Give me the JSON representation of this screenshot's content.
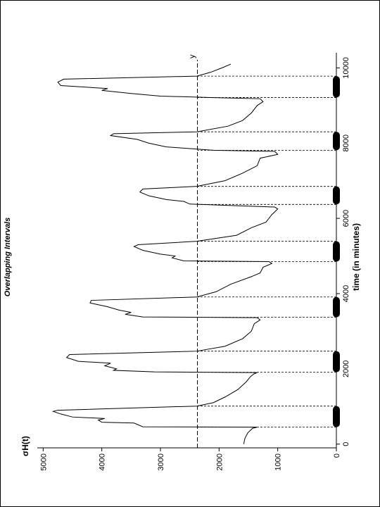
{
  "chart_data": {
    "type": "line",
    "title": "Overlapping Intervals",
    "xlabel": "time (in minutes)",
    "ylabel": "σH(t)",
    "threshold": {
      "label": "y",
      "value": 2370
    },
    "color": "#000000",
    "xlim": [
      -100,
      10400
    ],
    "xticks": [
      0,
      2000,
      4000,
      6000,
      8000,
      10000
    ],
    "ylim": [
      0,
      5100
    ],
    "yticks": [
      0,
      1000,
      2000,
      3000,
      4000,
      5000
    ],
    "intervals": [
      [
        450,
        1010
      ],
      [
        1910,
        2470
      ],
      [
        3370,
        3910
      ],
      [
        4850,
        5390
      ],
      [
        6370,
        6850
      ],
      [
        7810,
        8300
      ],
      [
        9210,
        9780
      ]
    ],
    "x": [
      0,
      150,
      300,
      420,
      450,
      460,
      560,
      580,
      640,
      680,
      720,
      800,
      870,
      900,
      1010,
      1100,
      1250,
      1450,
      1650,
      1800,
      1870,
      1900,
      1920,
      1960,
      2000,
      2080,
      2150,
      2200,
      2300,
      2380,
      2470,
      2600,
      2800,
      3000,
      3200,
      3300,
      3360,
      3380,
      3450,
      3500,
      3560,
      3650,
      3750,
      3820,
      3910,
      4050,
      4250,
      4450,
      4550,
      4700,
      4800,
      4850,
      4870,
      4950,
      5000,
      5050,
      5150,
      5250,
      5300,
      5390,
      5550,
      5750,
      5900,
      6100,
      6250,
      6300,
      6380,
      6450,
      6500,
      6600,
      6700,
      6780,
      6850,
      7000,
      7200,
      7400,
      7600,
      7700,
      7780,
      7810,
      7900,
      8000,
      8100,
      8200,
      8250,
      8300,
      8450,
      8600,
      8800,
      9000,
      9100,
      9180,
      9210,
      9250,
      9320,
      9400,
      9450,
      9530,
      9620,
      9700,
      9780,
      9880,
      10000,
      10100
    ],
    "values": [
      1580,
      1560,
      1510,
      1430,
      1350,
      3300,
      3450,
      4000,
      4060,
      3950,
      4500,
      4700,
      4830,
      4750,
      2380,
      2100,
      1900,
      1680,
      1540,
      1460,
      1400,
      1350,
      3100,
      3800,
      3750,
      3950,
      3850,
      4400,
      4600,
      4550,
      2380,
      1900,
      1600,
      1450,
      1400,
      1300,
      1350,
      3300,
      3600,
      3500,
      3700,
      3900,
      4200,
      4180,
      2380,
      2050,
      1800,
      1450,
      1300,
      1250,
      1100,
      1150,
      2600,
      2800,
      2750,
      3000,
      3300,
      3450,
      3380,
      2380,
      1700,
      1450,
      1200,
      1100,
      1000,
      1050,
      2500,
      2600,
      2900,
      3200,
      3350,
      3300,
      2380,
      1900,
      1600,
      1350,
      1300,
      1000,
      1050,
      2100,
      2900,
      3200,
      3400,
      3850,
      3800,
      2380,
      1850,
      1600,
      1450,
      1350,
      1250,
      1300,
      2100,
      3000,
      3500,
      4000,
      3900,
      4700,
      4750,
      4650,
      2380,
      2150,
      1950,
      1800
    ]
  }
}
